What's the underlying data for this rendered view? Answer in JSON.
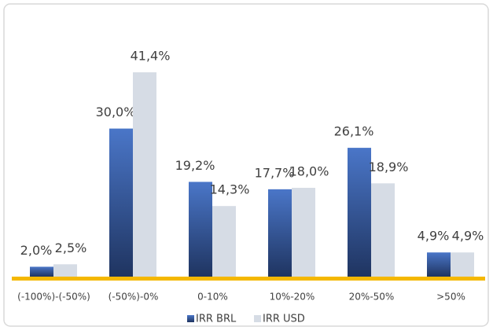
{
  "chart_data": {
    "type": "bar",
    "categories": [
      "(-100%)-(-50%)",
      "(-50%)-0%",
      "0-10%",
      "10%-20%",
      "20%-50%",
      ">50%"
    ],
    "series": [
      {
        "name": "IRR BRL",
        "color": "#2e4f8f",
        "values": [
          2.0,
          30.0,
          19.2,
          17.7,
          26.1,
          4.9
        ],
        "value_labels": [
          "2,0%",
          "30,0%",
          "19,2%",
          "17,7%",
          "26,1%",
          "4,9%"
        ]
      },
      {
        "name": "IRR USD",
        "color": "#d6dce5",
        "values": [
          2.5,
          41.4,
          14.3,
          18.0,
          18.9,
          4.9
        ],
        "value_labels": [
          "2,5%",
          "41,4%",
          "14,3%",
          "18,0%",
          "18,9%",
          "4,9%"
        ]
      }
    ],
    "legend": "bottom"
  }
}
